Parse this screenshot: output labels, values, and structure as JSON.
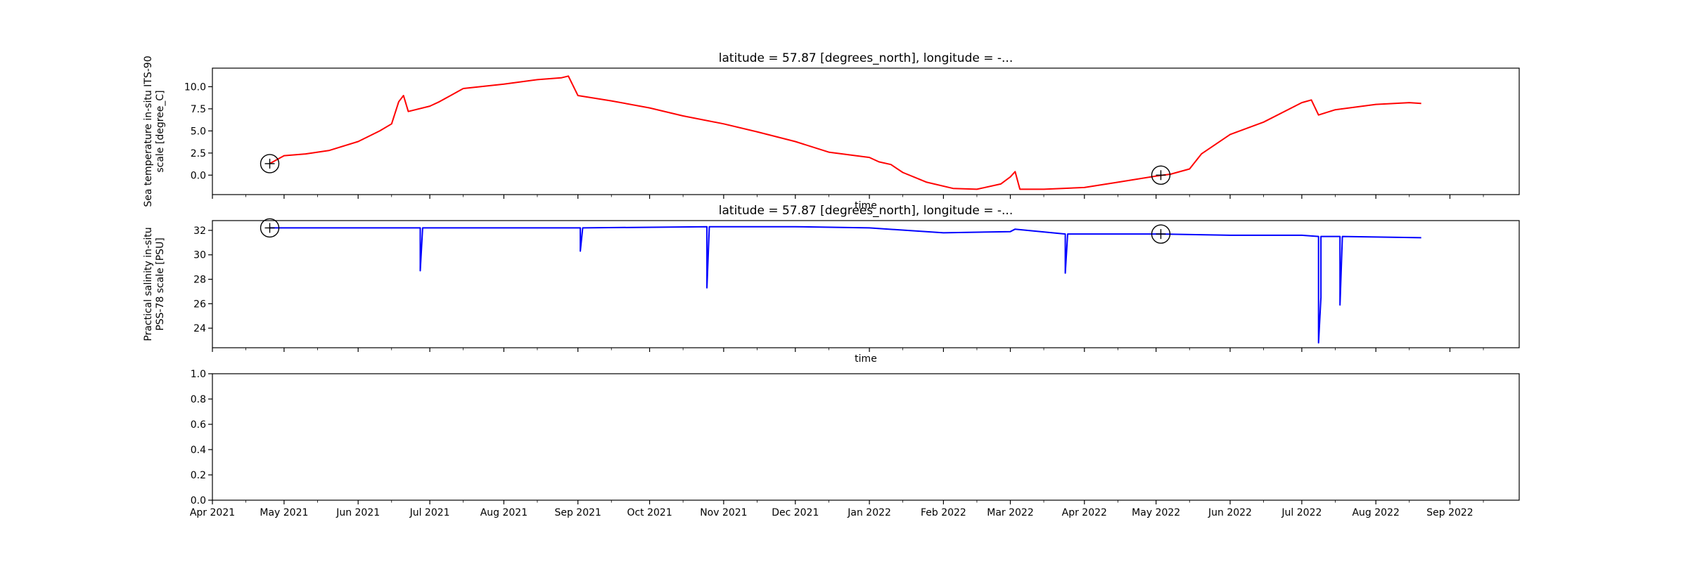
{
  "figure": {
    "background": "#ffffff",
    "marker_color": "#000000"
  },
  "chart_data": [
    {
      "type": "line",
      "title": "latitude = 57.87 [degrees_north], longitude = -...",
      "xlabel": "time",
      "ylabel_lines": [
        "Sea temperature in-situ ITS-90",
        "scale [degree_C]"
      ],
      "color": "#ff0000",
      "x_range": [
        "2021-04-01",
        "2022-09-30"
      ],
      "ylim": [
        -2.2,
        12.1
      ],
      "yticks": [
        0.0,
        2.5,
        5.0,
        7.5,
        10.0
      ],
      "ytick_labels": [
        "0.0",
        "2.5",
        "5.0",
        "7.5",
        "10.0"
      ],
      "show_xtick_labels": false,
      "grid": false,
      "series": [
        {
          "x": [
            "2021-04-25",
            "2021-05-01",
            "2021-05-10",
            "2021-05-20",
            "2021-06-01",
            "2021-06-10",
            "2021-06-15",
            "2021-06-18",
            "2021-06-20",
            "2021-06-22",
            "2021-07-01",
            "2021-07-05",
            "2021-07-15",
            "2021-08-01",
            "2021-08-15",
            "2021-08-25",
            "2021-08-28",
            "2021-09-01",
            "2021-09-15",
            "2021-10-01",
            "2021-10-15",
            "2021-11-01",
            "2021-11-15",
            "2021-12-01",
            "2021-12-15",
            "2022-01-01",
            "2022-01-05",
            "2022-01-10",
            "2022-01-15",
            "2022-01-25",
            "2022-02-05",
            "2022-02-15",
            "2022-02-25",
            "2022-03-01",
            "2022-03-03",
            "2022-03-05",
            "2022-03-15",
            "2022-04-01",
            "2022-04-15",
            "2022-05-01",
            "2022-05-07",
            "2022-05-15",
            "2022-05-20",
            "2022-06-01",
            "2022-06-15",
            "2022-07-01",
            "2022-07-05",
            "2022-07-08",
            "2022-07-15",
            "2022-08-01",
            "2022-08-15",
            "2022-08-20"
          ],
          "y": [
            1.3,
            2.2,
            2.4,
            2.8,
            3.8,
            5.0,
            5.8,
            8.3,
            9.0,
            7.2,
            7.8,
            8.3,
            9.8,
            10.3,
            10.8,
            11.0,
            11.2,
            9.0,
            8.4,
            7.6,
            6.7,
            5.8,
            4.9,
            3.8,
            2.6,
            2.0,
            1.5,
            1.2,
            0.3,
            -0.8,
            -1.5,
            -1.6,
            -1.0,
            -0.2,
            0.4,
            -1.6,
            -1.6,
            -1.4,
            -0.8,
            -0.1,
            0.1,
            0.7,
            2.4,
            4.6,
            6.0,
            8.2,
            8.5,
            6.8,
            7.4,
            8.0,
            8.2,
            8.1
          ]
        }
      ],
      "markers": [
        {
          "x": "2021-04-25",
          "y": 1.3
        },
        {
          "x": "2022-05-03",
          "y": 0.0
        }
      ]
    },
    {
      "type": "line",
      "title": "latitude = 57.87 [degrees_north], longitude = -...",
      "xlabel": "time",
      "ylabel_lines": [
        "Practical salinity in-situ",
        "PSS-78 scale [PSU]"
      ],
      "color": "#0000ff",
      "x_range": [
        "2021-04-01",
        "2022-09-30"
      ],
      "ylim": [
        22.4,
        32.8
      ],
      "yticks": [
        24,
        26,
        28,
        30,
        32
      ],
      "ytick_labels": [
        "24",
        "26",
        "28",
        "30",
        "32"
      ],
      "show_xtick_labels": false,
      "grid": false,
      "series": [
        {
          "x": [
            "2021-04-25",
            "2021-06-27",
            "2021-06-27",
            "2021-06-28",
            "2021-08-20",
            "2021-09-02",
            "2021-09-02",
            "2021-09-03",
            "2021-10-25",
            "2021-10-25",
            "2021-10-26",
            "2021-12-01",
            "2022-01-01",
            "2022-02-01",
            "2022-03-01",
            "2022-03-03",
            "2022-03-24",
            "2022-03-24",
            "2022-03-25",
            "2022-05-03",
            "2022-06-01",
            "2022-07-01",
            "2022-07-08",
            "2022-07-08",
            "2022-07-09",
            "2022-07-09",
            "2022-07-10",
            "2022-07-17",
            "2022-07-17",
            "2022-07-18",
            "2022-08-20"
          ],
          "y": [
            32.2,
            32.2,
            28.7,
            32.2,
            32.2,
            32.2,
            30.3,
            32.2,
            32.3,
            27.3,
            32.3,
            32.3,
            32.2,
            31.8,
            31.9,
            32.1,
            31.7,
            28.5,
            31.7,
            31.7,
            31.6,
            31.6,
            31.5,
            22.8,
            26.5,
            31.5,
            31.5,
            31.5,
            25.9,
            31.5,
            31.4
          ]
        }
      ],
      "markers": [
        {
          "x": "2021-04-25",
          "y": 32.2
        },
        {
          "x": "2022-05-03",
          "y": 31.7
        }
      ]
    },
    {
      "type": "line",
      "title": "",
      "xlabel": "",
      "ylabel_lines": [],
      "color": "#000000",
      "x_range": [
        "2021-04-01",
        "2022-09-30"
      ],
      "ylim": [
        0.0,
        1.0
      ],
      "yticks": [
        0.0,
        0.2,
        0.4,
        0.6,
        0.8,
        1.0
      ],
      "ytick_labels": [
        "0.0",
        "0.2",
        "0.4",
        "0.6",
        "0.8",
        "1.0"
      ],
      "show_xtick_labels": true,
      "grid": false,
      "series": [],
      "markers": []
    }
  ],
  "x_axis": {
    "major_ticks": [
      "2021-04-01",
      "2021-05-01",
      "2021-06-01",
      "2021-07-01",
      "2021-08-01",
      "2021-09-01",
      "2021-10-01",
      "2021-11-01",
      "2021-12-01",
      "2022-01-01",
      "2022-02-01",
      "2022-03-01",
      "2022-04-01",
      "2022-05-01",
      "2022-06-01",
      "2022-07-01",
      "2022-08-01",
      "2022-09-01"
    ],
    "major_labels": [
      "Apr 2021",
      "May 2021",
      "Jun 2021",
      "Jul 2021",
      "Aug 2021",
      "Sep 2021",
      "Oct 2021",
      "Nov 2021",
      "Dec 2021",
      "Jan 2022",
      "Feb 2022",
      "Mar 2022",
      "Apr 2022",
      "May 2022",
      "Jun 2022",
      "Jul 2022",
      "Aug 2022",
      "Sep 2022"
    ],
    "minor_ticks": [
      "2021-04-15",
      "2021-05-15",
      "2021-06-15",
      "2021-07-15",
      "2021-08-15",
      "2021-09-15",
      "2021-10-15",
      "2021-11-15",
      "2021-12-15",
      "2022-01-15",
      "2022-02-15",
      "2022-03-15",
      "2022-04-15",
      "2022-05-15",
      "2022-06-15",
      "2022-07-15",
      "2022-08-15",
      "2022-09-15"
    ]
  }
}
